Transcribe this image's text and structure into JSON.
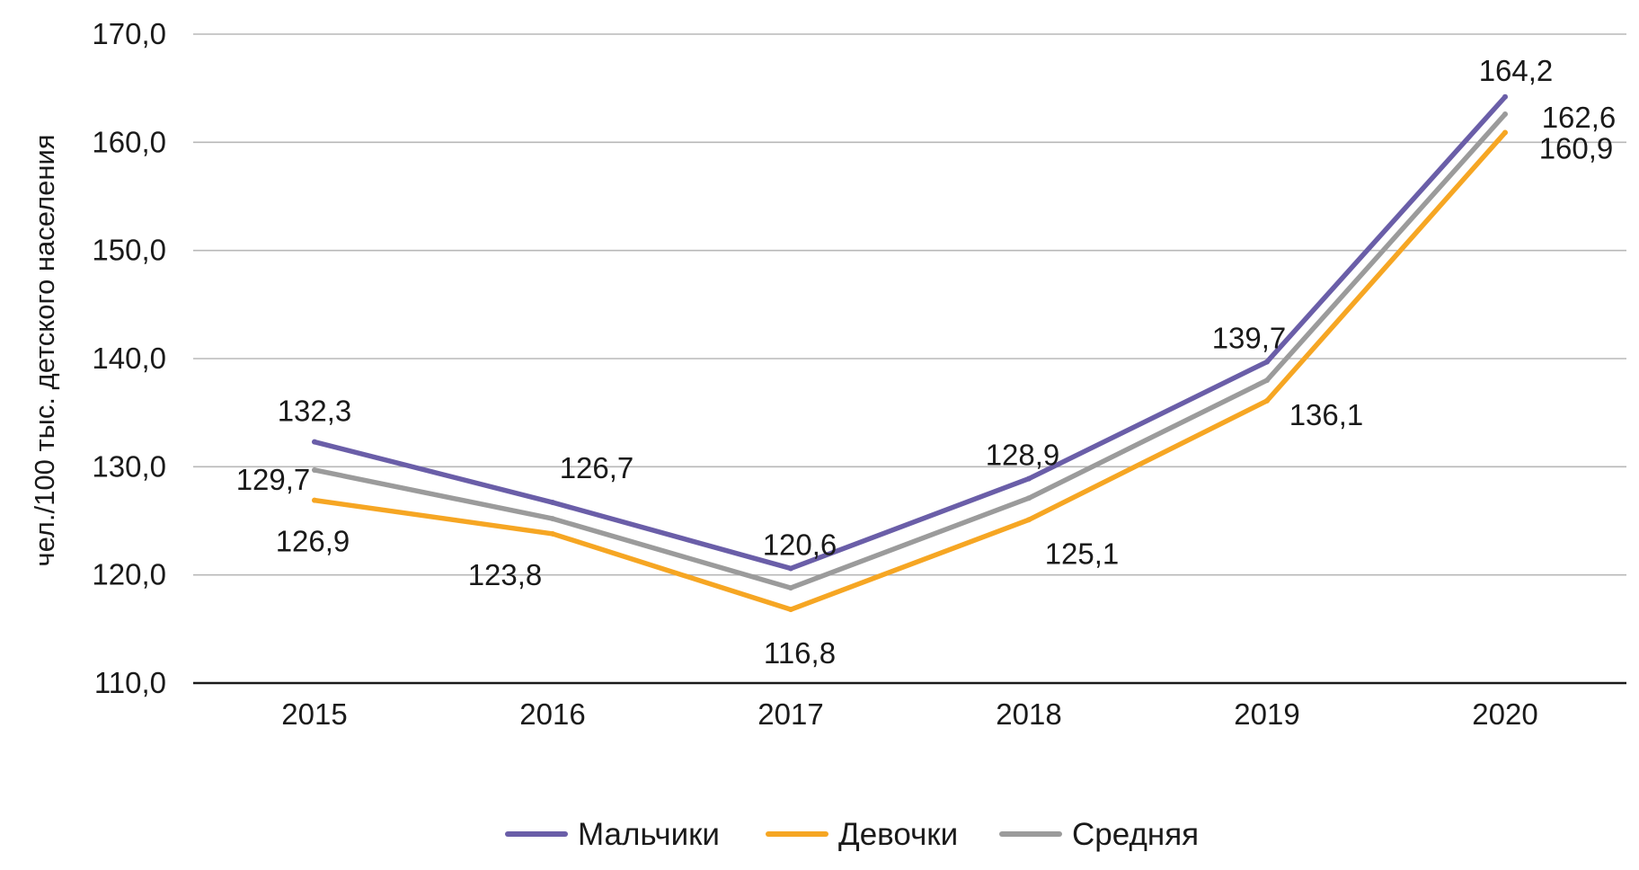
{
  "chart_data": {
    "type": "line",
    "categories": [
      "2015",
      "2016",
      "2017",
      "2018",
      "2019",
      "2020"
    ],
    "series": [
      {
        "name": "Мальчики",
        "color": "#6a5ea8",
        "values": [
          132.3,
          126.7,
          120.6,
          128.9,
          139.7,
          164.2
        ],
        "labels": [
          "132,3",
          "126,7",
          "120,6",
          "128,9",
          "139,7",
          "164,2"
        ]
      },
      {
        "name": "Девочки",
        "color": "#f6a623",
        "values": [
          126.9,
          123.8,
          116.8,
          125.1,
          136.1,
          160.9
        ],
        "labels": [
          "126,9",
          "123,8",
          "116,8",
          "125,1",
          "136,1",
          "160,9"
        ]
      },
      {
        "name": "Средняя",
        "color": "#9b9b9b",
        "values": [
          129.7,
          125.2,
          118.8,
          127.1,
          138.0,
          162.6
        ],
        "labels": [
          "129,7",
          "",
          "",
          "",
          "",
          "162,6"
        ]
      }
    ],
    "ylabel": "чел./100 тыс. детского населения",
    "ylim": [
      110,
      170
    ],
    "yticks": [
      110,
      120,
      130,
      140,
      150,
      160,
      170
    ],
    "ytick_labels": [
      "110,0",
      "120,0",
      "130,0",
      "140,0",
      "150,0",
      "160,0",
      "170,0"
    ],
    "grid": true,
    "legend_position": "bottom"
  }
}
